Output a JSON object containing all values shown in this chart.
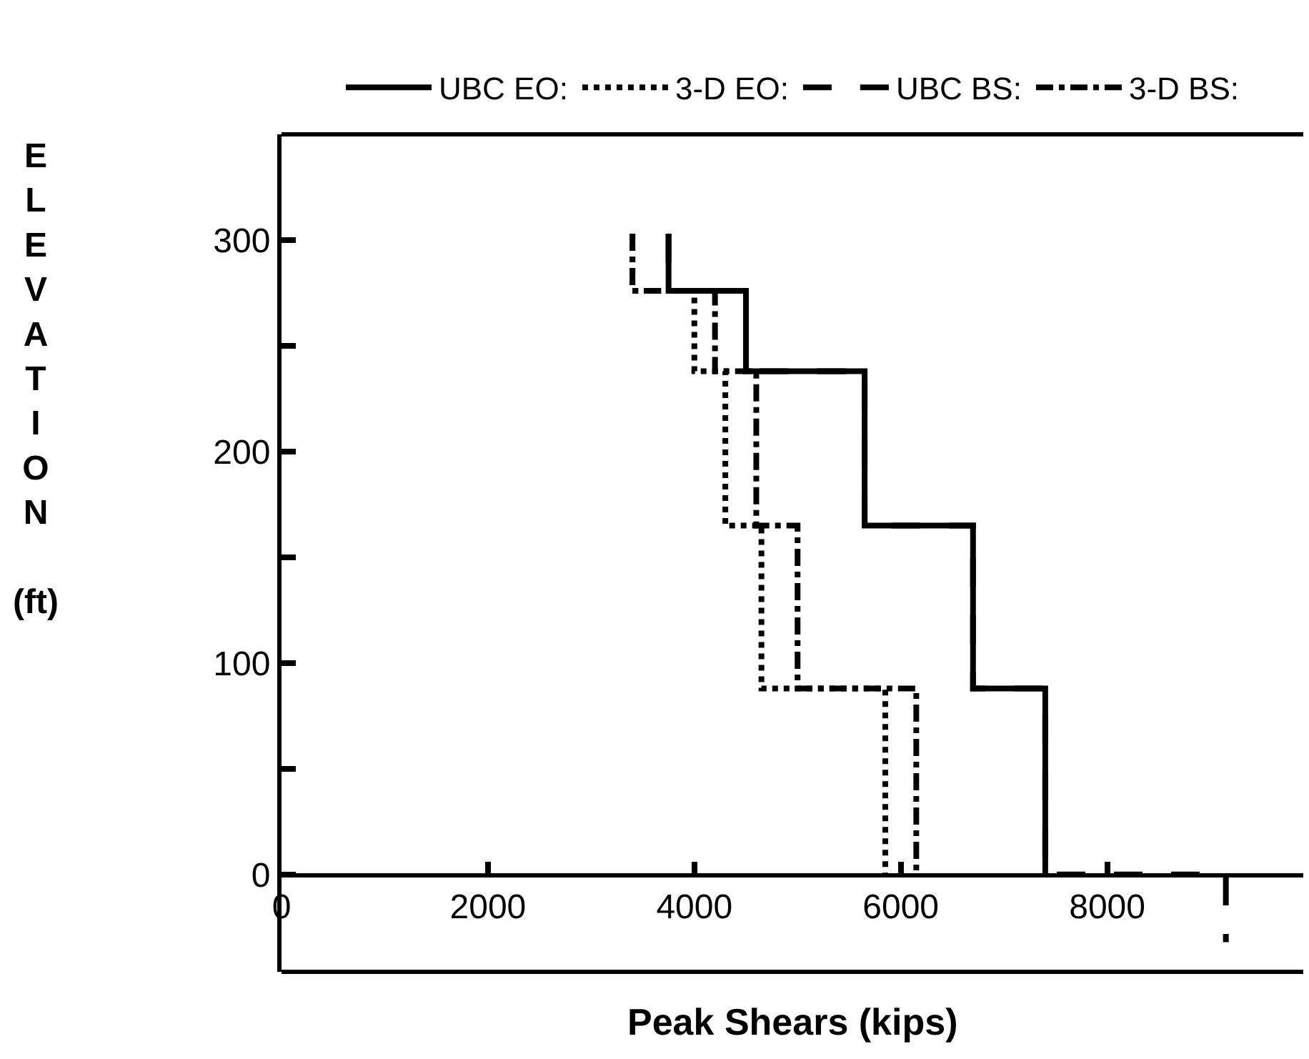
{
  "chart_data": {
    "type": "line",
    "xlabel": "Peak Shears (kips)",
    "ylabel": "ELEVATION (ft)",
    "xlim": [
      0,
      9900
    ],
    "ylim": [
      -46,
      350
    ],
    "xticks": [
      0,
      2000,
      4000,
      6000,
      8000
    ],
    "yticks": [
      0,
      {
        "value": 50,
        "label": null
      },
      100,
      {
        "value": 150,
        "label": null
      },
      200,
      {
        "value": 250,
        "label": null
      },
      300
    ],
    "legend": "top",
    "marker": "none",
    "series": [
      {
        "name": "UBC EO:",
        "color": "#000000",
        "line_style": "solid",
        "x": [
          3750,
          3750,
          4500,
          4500,
          5650,
          5650,
          6700,
          6700,
          7400,
          7400
        ],
        "values": [
          303,
          276,
          276,
          238,
          238,
          165,
          165,
          88,
          88,
          0
        ]
      },
      {
        "name": "3-D EO:",
        "color": "#000000",
        "line_style": "dotted",
        "x": [
          3400,
          3400,
          4000,
          4000,
          4300,
          4300,
          4650,
          4650,
          5850,
          5850
        ],
        "values": [
          303,
          276,
          276,
          238,
          238,
          165,
          165,
          88,
          88,
          0
        ]
      },
      {
        "name": "UBC BS:",
        "color": "#000000",
        "line_style": "dashed",
        "x": [
          3750,
          3750,
          4500,
          4500,
          5650,
          5650,
          6700,
          6700,
          7400,
          7400,
          9150,
          9150
        ],
        "values": [
          303,
          276,
          276,
          238,
          238,
          165,
          165,
          88,
          88,
          0,
          0,
          -32
        ]
      },
      {
        "name": "3-D BS:",
        "color": "#000000",
        "line_style": "dashdot",
        "x": [
          3400,
          3400,
          4200,
          4200,
          4600,
          4600,
          5000,
          5000,
          6150,
          6150
        ],
        "values": [
          303,
          276,
          276,
          238,
          238,
          165,
          165,
          88,
          88,
          0
        ]
      }
    ]
  }
}
